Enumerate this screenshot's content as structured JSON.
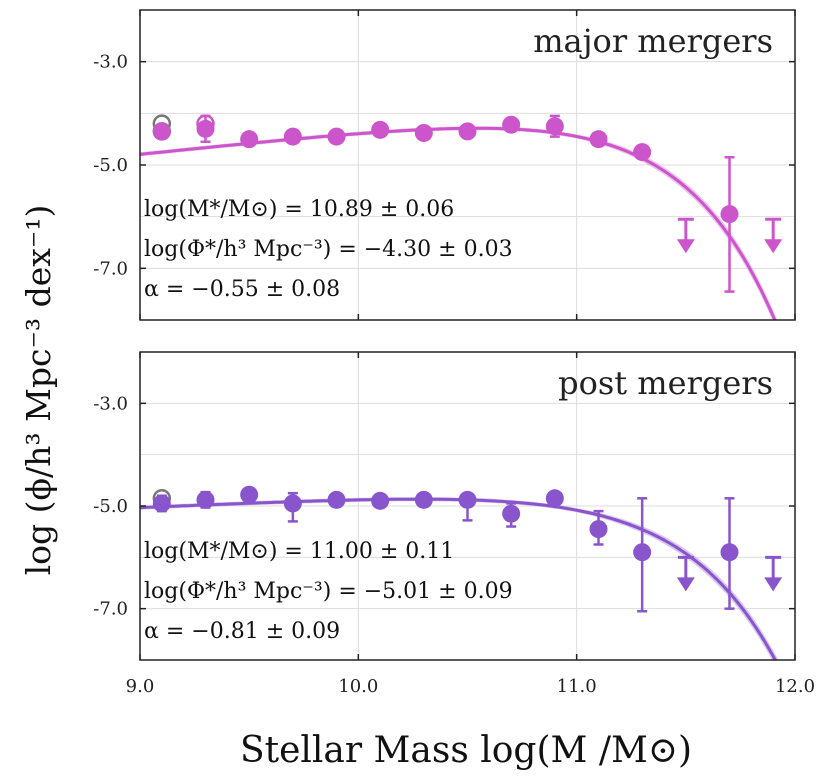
{
  "figure": {
    "ylabel": "log (ϕ/h³ Mpc⁻³ dex⁻¹)",
    "xlabel": "Stellar Mass log(M /M⊙)"
  },
  "chart_data": [
    {
      "type": "scatter",
      "title": "major mergers",
      "color": "#cc55cc",
      "band_color": "#e6a8e6",
      "xlim": [
        9.0,
        12.0
      ],
      "ylim": [
        -8.0,
        -2.0
      ],
      "xticks": [
        "9.0",
        "10.0",
        "11.0",
        "12.0"
      ],
      "yticks": [
        "-3.0",
        "-5.0",
        "-7.0"
      ],
      "ytick_values": [
        -3.0,
        -5.0,
        -7.0
      ],
      "xtick_values": [
        9.0,
        10.0,
        11.0,
        12.0
      ],
      "schechter": {
        "logMstar": 10.89,
        "logPhistar": -4.3,
        "alpha": -0.55
      },
      "annotations": [
        "log(M*/M⊙) = 10.89 ± 0.06",
        "log(Φ*/h³ Mpc⁻³) = −4.30 ± 0.03",
        "α = −0.55 ± 0.08"
      ],
      "points": [
        {
          "x": 9.1,
          "y": -4.35,
          "err_low": 0.12,
          "err_high": 0.12
        },
        {
          "x": 9.3,
          "y": -4.3,
          "err_low": 0.25,
          "err_high": 0.25
        },
        {
          "x": 9.5,
          "y": -4.5,
          "err_low": 0.12,
          "err_high": 0.12
        },
        {
          "x": 9.7,
          "y": -4.45,
          "err_low": 0.1,
          "err_high": 0.1
        },
        {
          "x": 9.9,
          "y": -4.45,
          "err_low": 0.1,
          "err_high": 0.1
        },
        {
          "x": 10.1,
          "y": -4.32,
          "err_low": 0.08,
          "err_high": 0.08
        },
        {
          "x": 10.3,
          "y": -4.38,
          "err_low": 0.1,
          "err_high": 0.1
        },
        {
          "x": 10.5,
          "y": -4.35,
          "err_low": 0.08,
          "err_high": 0.08
        },
        {
          "x": 10.7,
          "y": -4.22,
          "err_low": 0.08,
          "err_high": 0.08
        },
        {
          "x": 10.9,
          "y": -4.25,
          "err_low": 0.2,
          "err_high": 0.2
        },
        {
          "x": 11.1,
          "y": -4.5,
          "err_low": 0.1,
          "err_high": 0.1
        },
        {
          "x": 11.3,
          "y": -4.75,
          "err_low": 0.1,
          "err_high": 0.1
        },
        {
          "x": 11.7,
          "y": -5.95,
          "err_low": 1.5,
          "err_high": 1.1
        }
      ],
      "open_points": [
        {
          "x": 9.1,
          "y": -4.2,
          "color": "#777777"
        },
        {
          "x": 9.1,
          "y": -4.35,
          "color": "#777777"
        },
        {
          "x": 9.3,
          "y": -4.2,
          "color": "#cc55cc"
        }
      ],
      "upper_limits": [
        {
          "x": 11.5,
          "y": -6.05
        },
        {
          "x": 11.9,
          "y": -6.05
        }
      ]
    },
    {
      "type": "scatter",
      "title": "post mergers",
      "color": "#8855cc",
      "band_color": "#c8aee8",
      "xlim": [
        9.0,
        12.0
      ],
      "ylim": [
        -8.0,
        -2.0
      ],
      "xticks": [
        "9.0",
        "10.0",
        "11.0",
        "12.0"
      ],
      "yticks": [
        "-3.0",
        "-5.0",
        "-7.0"
      ],
      "ytick_values": [
        -3.0,
        -5.0,
        -7.0
      ],
      "xtick_values": [
        9.0,
        10.0,
        11.0,
        12.0
      ],
      "schechter": {
        "logMstar": 11.0,
        "logPhistar": -5.01,
        "alpha": -0.81
      },
      "annotations": [
        "log(M*/M⊙) = 11.00 ± 0.11",
        "log(Φ*/h³ Mpc⁻³) = −5.01 ± 0.09",
        "α = −0.81 ± 0.09"
      ],
      "points": [
        {
          "x": 9.1,
          "y": -4.95,
          "err_low": 0.15,
          "err_high": 0.15
        },
        {
          "x": 9.3,
          "y": -4.88,
          "err_low": 0.15,
          "err_high": 0.15
        },
        {
          "x": 9.5,
          "y": -4.78,
          "err_low": 0.1,
          "err_high": 0.1
        },
        {
          "x": 9.7,
          "y": -4.95,
          "err_low": 0.35,
          "err_high": 0.2
        },
        {
          "x": 9.9,
          "y": -4.88,
          "err_low": 0.12,
          "err_high": 0.12
        },
        {
          "x": 10.1,
          "y": -4.9,
          "err_low": 0.12,
          "err_high": 0.12
        },
        {
          "x": 10.3,
          "y": -4.88,
          "err_low": 0.12,
          "err_high": 0.12
        },
        {
          "x": 10.5,
          "y": -4.88,
          "err_low": 0.4,
          "err_high": 0.12
        },
        {
          "x": 10.7,
          "y": -5.15,
          "err_low": 0.25,
          "err_high": 0.2
        },
        {
          "x": 10.9,
          "y": -4.85,
          "err_low": 0.1,
          "err_high": 0.1
        },
        {
          "x": 11.1,
          "y": -5.45,
          "err_low": 0.3,
          "err_high": 0.35
        },
        {
          "x": 11.3,
          "y": -5.9,
          "err_low": 1.15,
          "err_high": 1.05
        },
        {
          "x": 11.7,
          "y": -5.9,
          "err_low": 1.1,
          "err_high": 1.05
        }
      ],
      "open_points": [
        {
          "x": 9.1,
          "y": -4.85,
          "color": "#777777"
        }
      ],
      "upper_limits": [
        {
          "x": 11.5,
          "y": -6.0
        },
        {
          "x": 11.9,
          "y": -6.0
        }
      ]
    }
  ]
}
